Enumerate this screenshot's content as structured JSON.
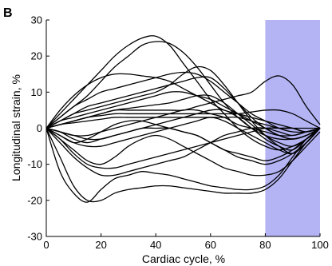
{
  "panel_label": "B",
  "chart_data": {
    "type": "line",
    "title": "",
    "xlabel": "Cardiac cycle, %",
    "ylabel": "Longitudinal strain, %",
    "xlim": [
      0,
      100
    ],
    "ylim": [
      -30,
      30
    ],
    "x_ticks": [
      0,
      20,
      40,
      60,
      80,
      100
    ],
    "y_ticks": [
      -30,
      -20,
      -10,
      0,
      10,
      20,
      30
    ],
    "grid": false,
    "legend": "none",
    "highlight_region": {
      "x_start": 80,
      "x_end": 100,
      "color": "#b4b4f5"
    },
    "x": [
      0,
      5,
      10,
      15,
      20,
      25,
      30,
      35,
      40,
      45,
      50,
      55,
      60,
      65,
      70,
      75,
      80,
      85,
      90,
      95,
      100
    ],
    "series": [
      {
        "values": [
          0,
          4,
          8,
          12,
          16,
          20,
          23,
          25,
          25.5,
          23,
          18,
          13,
          8,
          4,
          0,
          -3,
          -5,
          -6,
          -5,
          -3,
          0
        ]
      },
      {
        "values": [
          0,
          3,
          6,
          9,
          13,
          17,
          20,
          23,
          24,
          23.5,
          21,
          17,
          12,
          7,
          3,
          0,
          -2,
          -3,
          -3,
          -2,
          0
        ]
      },
      {
        "values": [
          0,
          5,
          9,
          12,
          14,
          15,
          15,
          14.5,
          14,
          13,
          11,
          9,
          7,
          5,
          4,
          3,
          2,
          1,
          0,
          -1,
          0
        ]
      },
      {
        "values": [
          0,
          3,
          6,
          8,
          10,
          11,
          12,
          13,
          14,
          15,
          15.5,
          15,
          13,
          10,
          7,
          4,
          2,
          0,
          -1,
          -1,
          0
        ]
      },
      {
        "values": [
          0,
          2,
          4,
          6,
          7,
          8,
          9,
          10,
          11,
          12,
          13,
          14,
          14,
          11,
          7,
          3,
          0,
          -2,
          -3,
          -2,
          0
        ]
      },
      {
        "values": [
          0,
          2,
          4,
          5,
          6,
          7,
          8,
          9,
          10,
          12,
          15,
          17,
          16,
          12,
          7,
          2,
          -2,
          -5,
          -7,
          -4,
          0
        ]
      },
      {
        "values": [
          0,
          2,
          3,
          4,
          5,
          6,
          7,
          8,
          9,
          10,
          10,
          9,
          8,
          6,
          4,
          2,
          0,
          -2,
          -3,
          -2,
          0
        ]
      },
      {
        "values": [
          0,
          1,
          2,
          3,
          4,
          5,
          5.5,
          6,
          6.5,
          7,
          8,
          9,
          9,
          7,
          4,
          1,
          -2,
          -4,
          -5,
          -3,
          0
        ]
      },
      {
        "values": [
          0,
          1,
          2,
          3,
          4,
          5,
          5,
          5,
          5,
          5,
          5,
          6,
          7,
          8,
          9,
          10,
          13,
          14.5,
          12,
          6,
          1
        ]
      },
      {
        "values": [
          0,
          1,
          2,
          3,
          3.5,
          4,
          4,
          4,
          4,
          4,
          4,
          4,
          4,
          4,
          4,
          4.5,
          5,
          5,
          4,
          2,
          0
        ]
      },
      {
        "values": [
          0,
          1,
          1.5,
          2,
          2.5,
          3,
          3,
          3,
          3,
          3,
          3,
          3,
          3,
          3,
          3,
          2,
          1,
          0,
          0,
          0,
          0
        ]
      },
      {
        "values": [
          0,
          -1,
          -2,
          -3,
          -3,
          -2,
          -1,
          0,
          1,
          2,
          3,
          4,
          5,
          5,
          3,
          0,
          -3,
          -5,
          -6,
          -3,
          0
        ]
      },
      {
        "values": [
          0,
          -1,
          -2,
          -2,
          -1,
          0,
          1,
          2,
          3,
          4,
          5,
          5,
          4,
          3,
          1,
          0,
          -1,
          -2,
          -2,
          -1,
          0
        ]
      },
      {
        "values": [
          0,
          -2,
          -4,
          -5,
          -5,
          -4,
          -3,
          -2,
          -1,
          0,
          1,
          2,
          3,
          2,
          0,
          -2,
          -4,
          -6,
          -7,
          -4,
          0
        ]
      },
      {
        "values": [
          0,
          -1,
          -3,
          -4,
          -3,
          -2,
          -1,
          0,
          0,
          0,
          -1,
          -2,
          -4,
          -6,
          -7,
          -8,
          -9,
          -8,
          -6,
          -3,
          0
        ]
      },
      {
        "values": [
          0,
          -2,
          -4,
          -3,
          -1,
          1,
          2,
          2,
          1,
          0,
          -1,
          -2,
          -4,
          -6,
          -8,
          -9,
          -10,
          -9,
          -7,
          -4,
          0
        ]
      },
      {
        "values": [
          0,
          -3,
          -6,
          -9,
          -10,
          -8,
          -5,
          -3,
          -2,
          -3,
          -5,
          -7,
          -9,
          -11,
          -12,
          -13,
          -13,
          -12,
          -9,
          -5,
          -1
        ]
      },
      {
        "values": [
          0,
          -3,
          -7,
          -10,
          -11,
          -11,
          -10,
          -9,
          -8,
          -7,
          -6,
          -5,
          -4,
          -3,
          -2,
          -1,
          0,
          0,
          0,
          -1,
          0
        ]
      },
      {
        "values": [
          0,
          -4,
          -8,
          -11,
          -13,
          -13,
          -12,
          -11,
          -10,
          -9,
          -8,
          -6,
          -4,
          -2,
          -1,
          0,
          0,
          -1,
          -2,
          -1,
          0
        ]
      },
      {
        "values": [
          0,
          -8,
          -16,
          -20,
          -20,
          -18,
          -17,
          -16.5,
          -16,
          -16,
          -16.5,
          -17,
          -17.5,
          -18,
          -18,
          -18,
          -17,
          -14,
          -9,
          -4,
          0
        ]
      },
      {
        "values": [
          0,
          -12,
          -18,
          -20.5,
          -17,
          -14,
          -13,
          -12,
          -12.5,
          -13,
          -14,
          -15,
          -16,
          -16.5,
          -17,
          -17,
          -16,
          -13,
          -8,
          -3,
          0
        ]
      }
    ]
  }
}
